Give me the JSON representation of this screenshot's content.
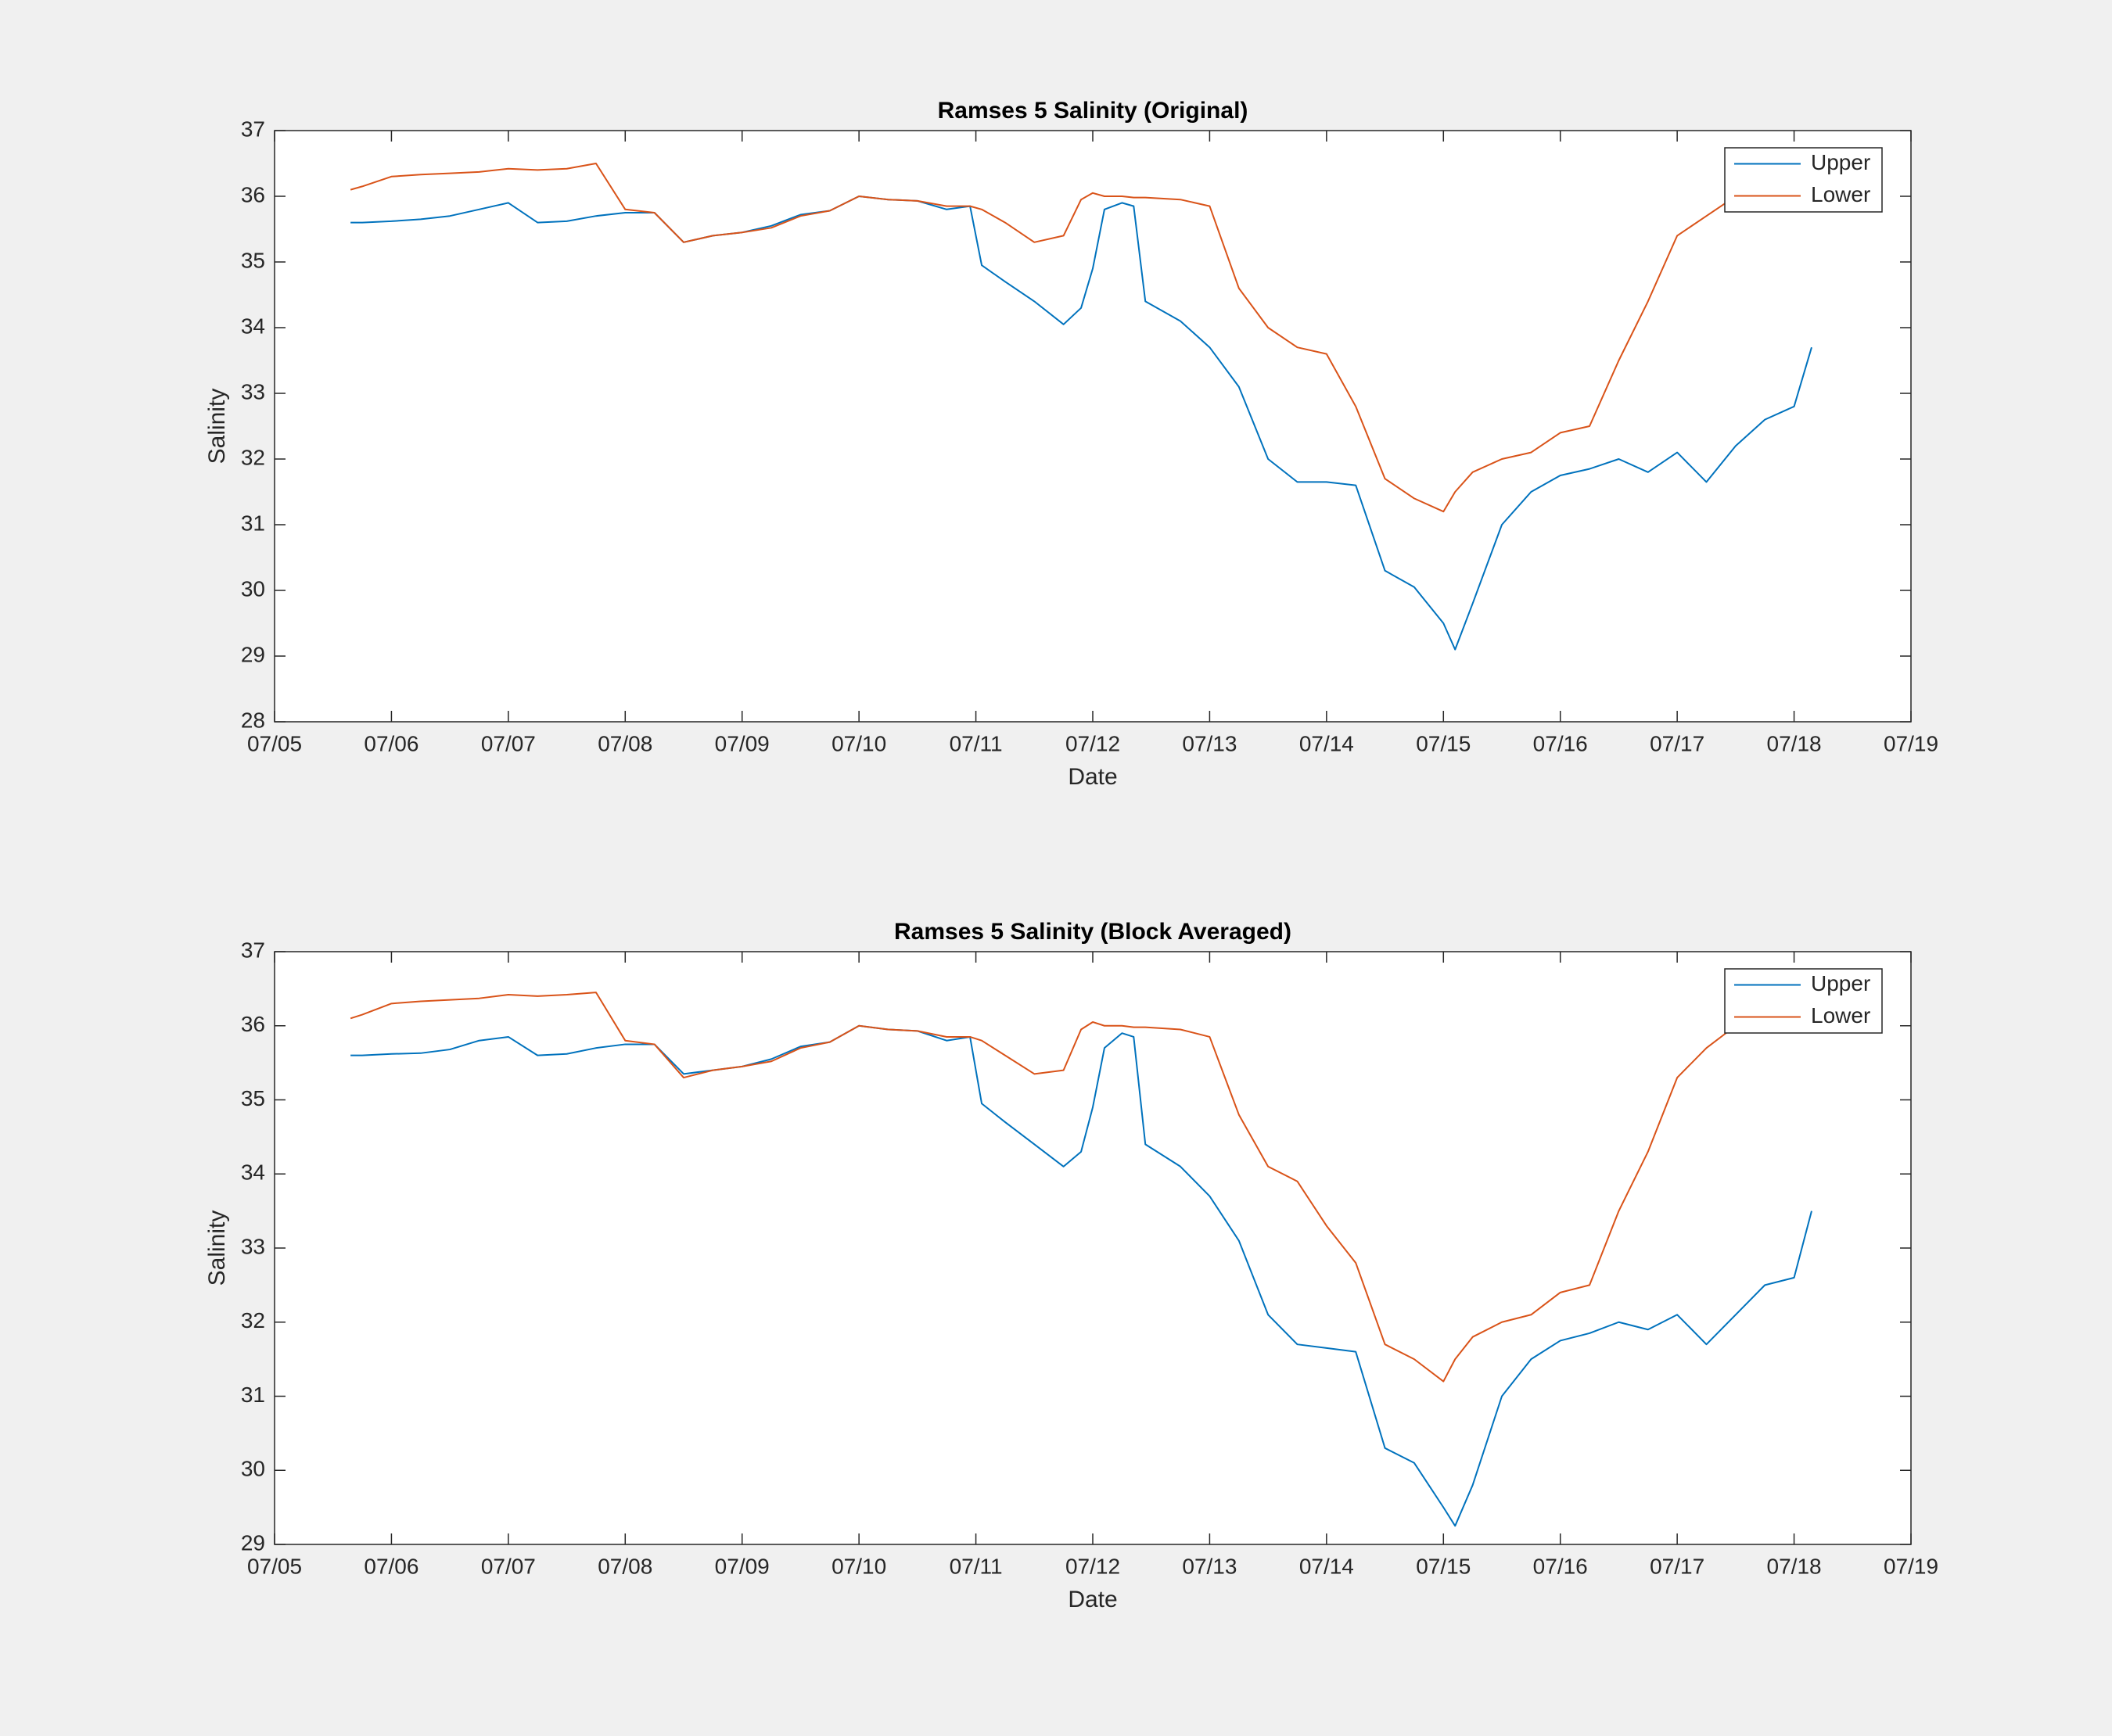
{
  "chart_data": [
    {
      "type": "line",
      "title": "Ramses 5 Salinity (Original)",
      "xlabel": "Date",
      "ylabel": "Salinity",
      "x": [
        5.65,
        5.75,
        6,
        6.25,
        6.5,
        6.75,
        7,
        7.25,
        7.5,
        7.75,
        8,
        8.25,
        8.5,
        8.75,
        9,
        9.25,
        9.5,
        9.75,
        10,
        10.25,
        10.5,
        10.75,
        10.95,
        11.05,
        11.25,
        11.5,
        11.75,
        11.9,
        12,
        12.1,
        12.25,
        12.35,
        12.45,
        12.75,
        13,
        13.25,
        13.5,
        13.75,
        14,
        14.25,
        14.5,
        14.75,
        15,
        15.1,
        15.25,
        15.5,
        15.75,
        16,
        16.25,
        16.5,
        16.75,
        17,
        17.25,
        17.5,
        17.75,
        18,
        18.15
      ],
      "series": [
        {
          "name": "Upper",
          "color": "#0072bd",
          "values": [
            35.6,
            35.6,
            35.62,
            35.65,
            35.7,
            35.8,
            35.9,
            35.6,
            35.62,
            35.7,
            35.75,
            35.75,
            35.3,
            35.4,
            35.45,
            35.55,
            35.72,
            35.78,
            36.0,
            35.95,
            35.93,
            35.8,
            35.85,
            34.95,
            34.7,
            34.4,
            34.05,
            34.3,
            34.9,
            35.8,
            35.9,
            35.85,
            34.4,
            34.1,
            33.7,
            33.1,
            32.0,
            31.65,
            31.65,
            31.6,
            30.3,
            30.05,
            29.5,
            29.1,
            29.8,
            31.0,
            31.5,
            31.75,
            31.85,
            32.0,
            31.8,
            32.1,
            31.65,
            32.2,
            32.6,
            32.8,
            33.7
          ]
        },
        {
          "name": "Lower",
          "color": "#d95319",
          "values": [
            36.1,
            36.15,
            36.3,
            36.33,
            36.35,
            36.37,
            36.42,
            36.4,
            36.42,
            36.5,
            35.8,
            35.75,
            35.3,
            35.4,
            35.45,
            35.52,
            35.7,
            35.78,
            36.0,
            35.95,
            35.93,
            35.85,
            35.85,
            35.8,
            35.6,
            35.3,
            35.4,
            35.95,
            36.05,
            36.0,
            36.0,
            35.98,
            35.98,
            35.95,
            35.85,
            34.6,
            34.0,
            33.7,
            33.6,
            32.8,
            31.7,
            31.4,
            31.2,
            31.5,
            31.8,
            32.0,
            32.1,
            32.4,
            32.5,
            33.5,
            34.4,
            35.4,
            35.7,
            36.0,
            36.2,
            36.3,
            36.3
          ]
        }
      ],
      "xlim": [
        5,
        19
      ],
      "xticks": [
        {
          "value": 5,
          "label": "07/05"
        },
        {
          "value": 6,
          "label": "07/06"
        },
        {
          "value": 7,
          "label": "07/07"
        },
        {
          "value": 8,
          "label": "07/08"
        },
        {
          "value": 9,
          "label": "07/09"
        },
        {
          "value": 10,
          "label": "07/10"
        },
        {
          "value": 11,
          "label": "07/11"
        },
        {
          "value": 12,
          "label": "07/12"
        },
        {
          "value": 13,
          "label": "07/13"
        },
        {
          "value": 14,
          "label": "07/14"
        },
        {
          "value": 15,
          "label": "07/15"
        },
        {
          "value": 16,
          "label": "07/16"
        },
        {
          "value": 17,
          "label": "07/17"
        },
        {
          "value": 18,
          "label": "07/18"
        },
        {
          "value": 19,
          "label": "07/19"
        }
      ],
      "ylim": [
        28,
        37
      ],
      "yticks": [
        28,
        29,
        30,
        31,
        32,
        33,
        34,
        35,
        36,
        37
      ],
      "legend": "upper right"
    },
    {
      "type": "line",
      "title": "Ramses 5 Salinity (Block Averaged)",
      "xlabel": "Date",
      "ylabel": "Salinity",
      "x": [
        5.65,
        5.75,
        6,
        6.25,
        6.5,
        6.75,
        7,
        7.25,
        7.5,
        7.75,
        8,
        8.25,
        8.5,
        8.75,
        9,
        9.25,
        9.5,
        9.75,
        10,
        10.25,
        10.5,
        10.75,
        10.95,
        11.05,
        11.25,
        11.5,
        11.75,
        11.9,
        12,
        12.1,
        12.25,
        12.35,
        12.45,
        12.75,
        13,
        13.25,
        13.5,
        13.75,
        14,
        14.25,
        14.5,
        14.75,
        15,
        15.1,
        15.25,
        15.5,
        15.75,
        16,
        16.25,
        16.5,
        16.75,
        17,
        17.25,
        17.5,
        17.75,
        18,
        18.15
      ],
      "series": [
        {
          "name": "Upper",
          "color": "#0072bd",
          "values": [
            35.6,
            35.6,
            35.62,
            35.63,
            35.68,
            35.8,
            35.85,
            35.6,
            35.62,
            35.7,
            35.75,
            35.75,
            35.35,
            35.4,
            35.45,
            35.55,
            35.72,
            35.78,
            36.0,
            35.95,
            35.93,
            35.8,
            35.85,
            34.95,
            34.7,
            34.4,
            34.1,
            34.3,
            34.9,
            35.7,
            35.9,
            35.85,
            34.4,
            34.1,
            33.7,
            33.1,
            32.1,
            31.7,
            31.65,
            31.6,
            30.3,
            30.1,
            29.5,
            29.25,
            29.8,
            31.0,
            31.5,
            31.75,
            31.85,
            32.0,
            31.9,
            32.1,
            31.7,
            32.1,
            32.5,
            32.6,
            33.5
          ]
        },
        {
          "name": "Lower",
          "color": "#d95319",
          "values": [
            36.1,
            36.15,
            36.3,
            36.33,
            36.35,
            36.37,
            36.42,
            36.4,
            36.42,
            36.45,
            35.8,
            35.75,
            35.3,
            35.4,
            35.45,
            35.52,
            35.7,
            35.78,
            36.0,
            35.95,
            35.93,
            35.85,
            35.85,
            35.8,
            35.6,
            35.35,
            35.4,
            35.95,
            36.05,
            36.0,
            36.0,
            35.98,
            35.98,
            35.95,
            35.85,
            34.8,
            34.1,
            33.9,
            33.3,
            32.8,
            31.7,
            31.5,
            31.2,
            31.5,
            31.8,
            32.0,
            32.1,
            32.4,
            32.5,
            33.5,
            34.3,
            35.3,
            35.7,
            36.0,
            36.2,
            36.3,
            36.3
          ]
        }
      ],
      "xlim": [
        5,
        19
      ],
      "xticks": [
        {
          "value": 5,
          "label": "07/05"
        },
        {
          "value": 6,
          "label": "07/06"
        },
        {
          "value": 7,
          "label": "07/07"
        },
        {
          "value": 8,
          "label": "07/08"
        },
        {
          "value": 9,
          "label": "07/09"
        },
        {
          "value": 10,
          "label": "07/10"
        },
        {
          "value": 11,
          "label": "07/11"
        },
        {
          "value": 12,
          "label": "07/12"
        },
        {
          "value": 13,
          "label": "07/13"
        },
        {
          "value": 14,
          "label": "07/14"
        },
        {
          "value": 15,
          "label": "07/15"
        },
        {
          "value": 16,
          "label": "07/16"
        },
        {
          "value": 17,
          "label": "07/17"
        },
        {
          "value": 18,
          "label": "07/18"
        },
        {
          "value": 19,
          "label": "07/19"
        }
      ],
      "ylim": [
        29,
        37
      ],
      "yticks": [
        29,
        30,
        31,
        32,
        33,
        34,
        35,
        36,
        37
      ],
      "legend": "upper right"
    }
  ]
}
